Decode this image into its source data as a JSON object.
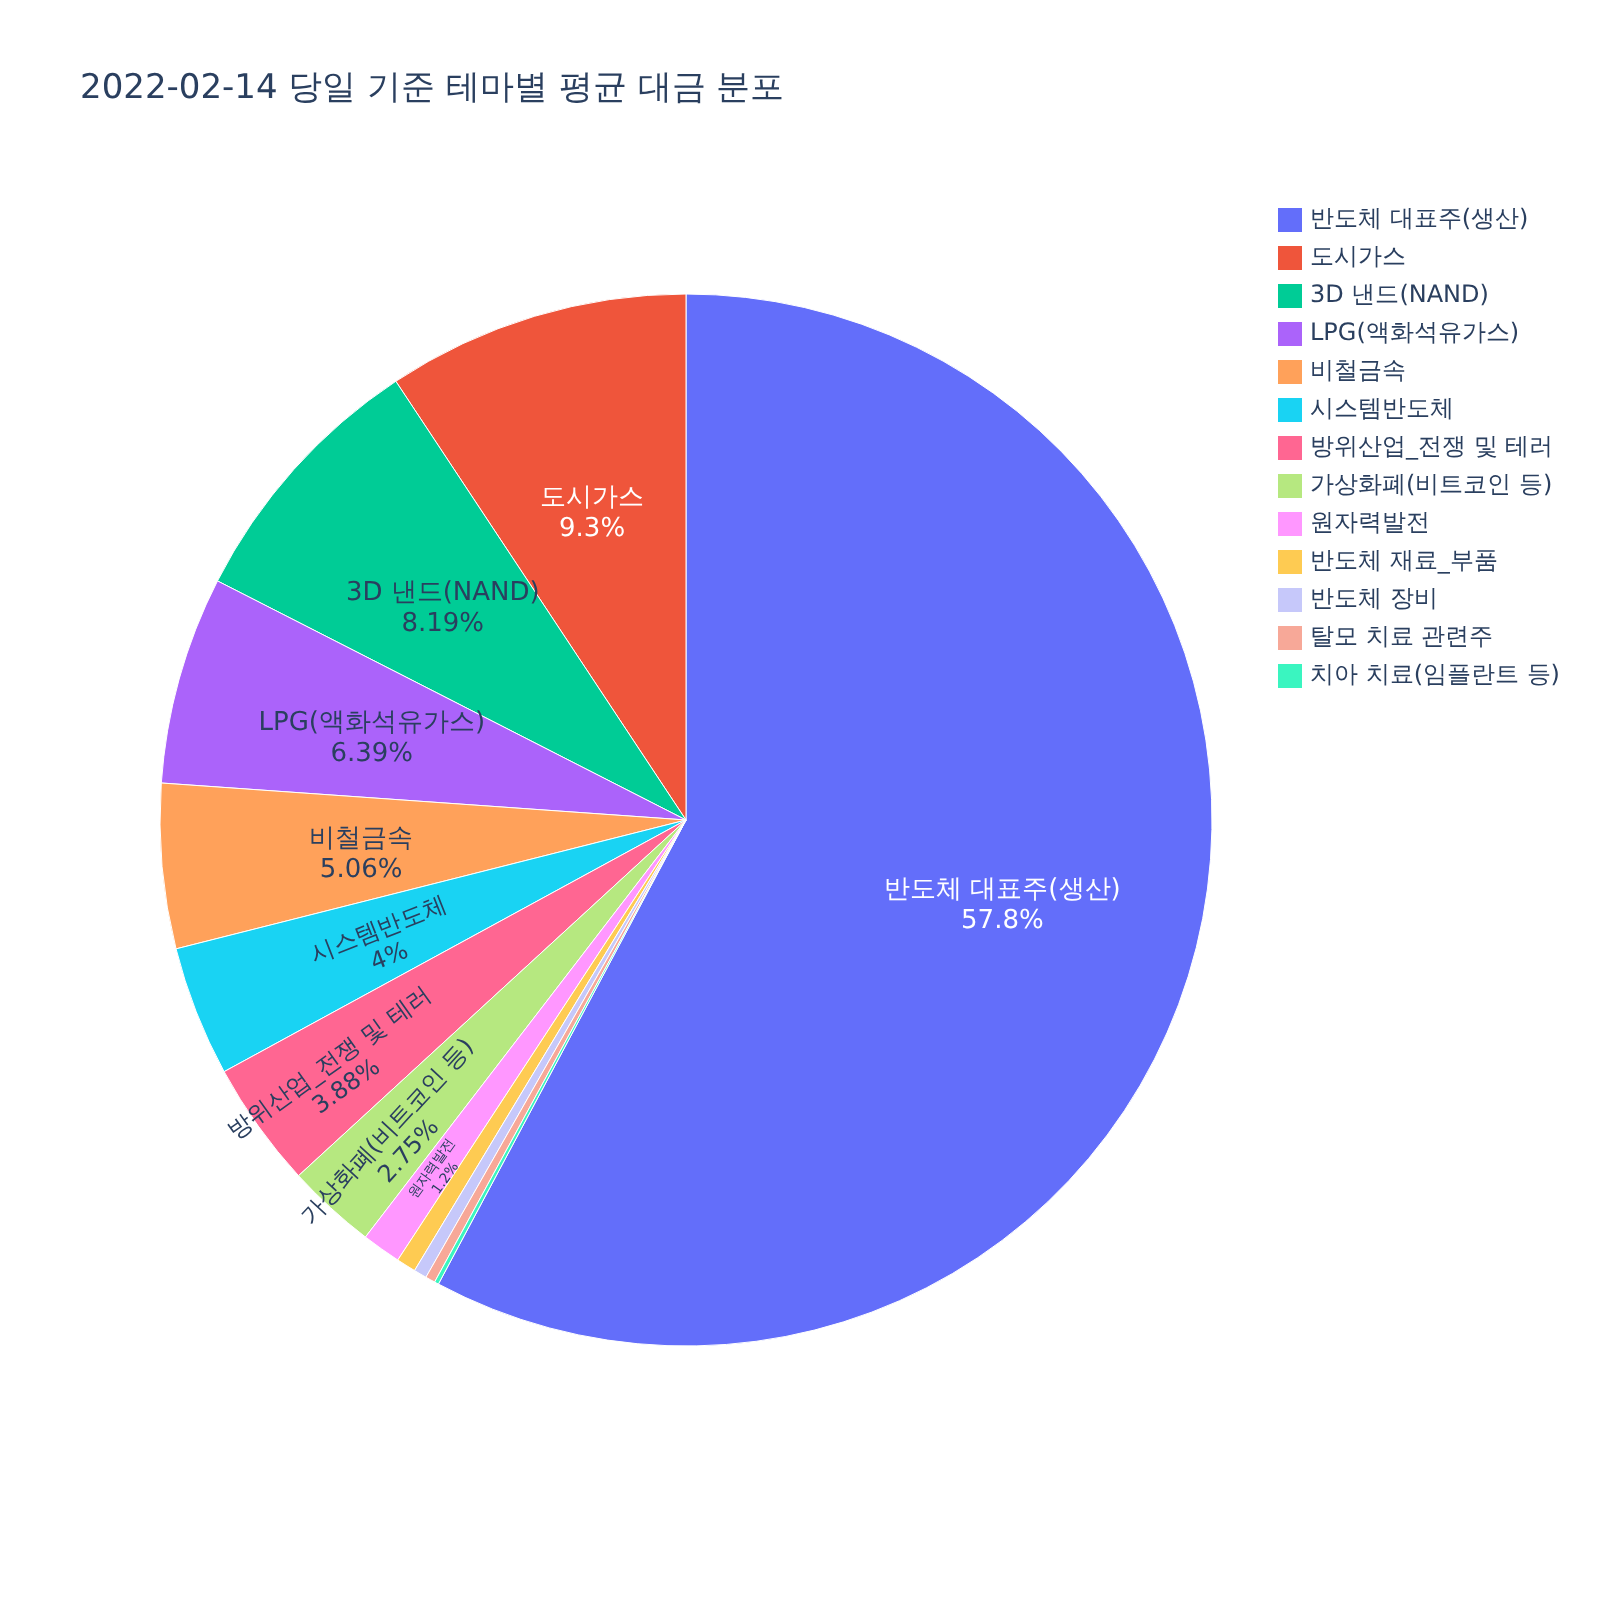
{
  "chart_data": {
    "type": "pie",
    "title": "2022-02-14 당일 기준 테마별 평균 대금 분포",
    "categories": [
      "반도체 대표주(생산)",
      "도시가스",
      "3D 낸드(NAND)",
      "LPG(액화석유가스)",
      "비철금속",
      "시스템반도체",
      "방위산업_전쟁 및 테러",
      "가상화폐(비트코인 등)",
      "원자력발전",
      "반도체 재료_부품",
      "반도체 장비",
      "탈모 치료 관련주",
      "치아 치료(임플란트 등)"
    ],
    "values": [
      57.8,
      9.3,
      8.19,
      6.39,
      5.06,
      4,
      3.88,
      2.75,
      1.2,
      0.6,
      0.4,
      0.3,
      0.13
    ],
    "value_labels": [
      "57.8%",
      "9.3%",
      "8.19%",
      "6.39%",
      "5.06%",
      "4%",
      "3.88%",
      "2.75%",
      "1.2%",
      null,
      null,
      null,
      null
    ],
    "colors": [
      "#636efa",
      "#ef553b",
      "#00cc96",
      "#ab63fa",
      "#ffa15a",
      "#19d3f3",
      "#ff6692",
      "#b6e880",
      "#ff97ff",
      "#fecb52",
      "#c6c8fa",
      "#f7a898",
      "#3af5c0"
    ],
    "legend": "top right"
  }
}
